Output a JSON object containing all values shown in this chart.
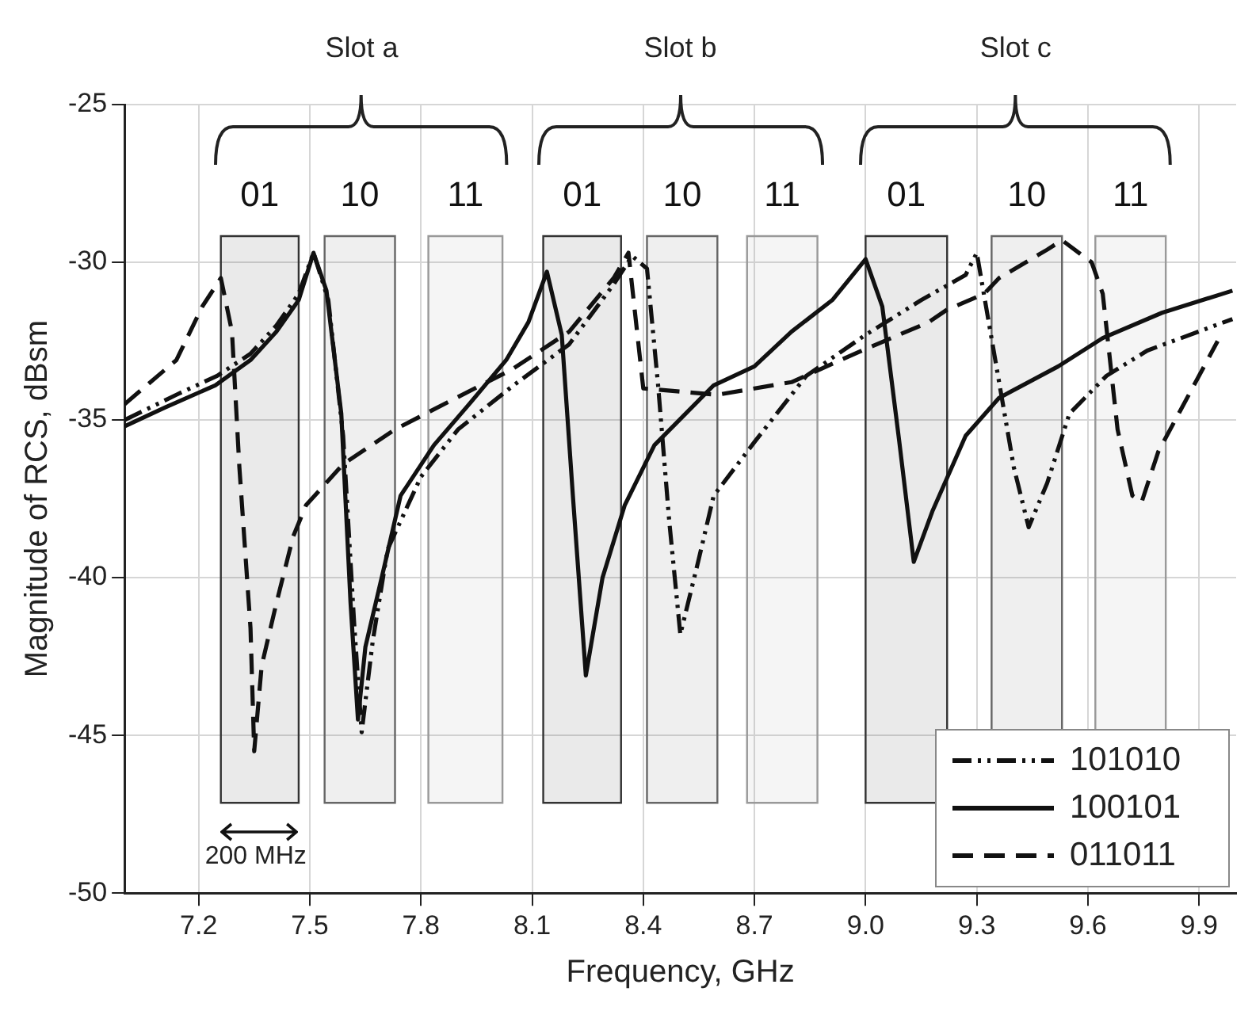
{
  "chart_data": {
    "type": "line",
    "xlabel": "Frequency, GHz",
    "ylabel": "Magnitude of RCS, dBsm",
    "xlim": [
      7.0,
      10.0
    ],
    "ylim": [
      -50,
      -25
    ],
    "xticks": [
      7.2,
      7.5,
      7.8,
      8.1,
      8.4,
      8.7,
      {
        "value": 9.0,
        "label": "9.0"
      },
      9.3,
      9.6,
      9.9
    ],
    "yticks": [
      -50,
      -45,
      -40,
      -35,
      -30,
      -25
    ],
    "grid": true,
    "legend": "bottom right",
    "annotations": [
      "Slot a",
      "Slot b",
      "Slot c",
      "200 MHz"
    ],
    "bands": [
      {
        "axis": "x",
        "from": 7.26,
        "to": 7.47,
        "label": "01",
        "color": "#333333"
      },
      {
        "axis": "x",
        "from": 7.54,
        "to": 7.73,
        "label": "10",
        "color": "#666666"
      },
      {
        "axis": "x",
        "from": 7.82,
        "to": 8.02,
        "label": "11",
        "color": "#999999"
      },
      {
        "axis": "x",
        "from": 8.13,
        "to": 8.34,
        "label": "01",
        "color": "#333333"
      },
      {
        "axis": "x",
        "from": 8.41,
        "to": 8.6,
        "label": "10",
        "color": "#666666"
      },
      {
        "axis": "x",
        "from": 8.68,
        "to": 8.87,
        "label": "11",
        "color": "#999999"
      },
      {
        "axis": "x",
        "from": 9.0,
        "to": 9.22,
        "label": "01",
        "color": "#333333"
      },
      {
        "axis": "x",
        "from": 9.34,
        "to": 9.53,
        "label": "10",
        "color": "#666666"
      },
      {
        "axis": "x",
        "from": 9.62,
        "to": 9.81,
        "label": "11",
        "color": "#999999"
      }
    ],
    "series": [
      {
        "name": "101010",
        "color": "#111111",
        "line_style": "dotted",
        "x": [
          7.0,
          7.14,
          7.25,
          7.34,
          7.41,
          7.47,
          7.51,
          7.55,
          7.59,
          7.62,
          7.64,
          7.67,
          7.71,
          7.8,
          7.9,
          8.05,
          8.2,
          8.32,
          8.37,
          8.41,
          8.44,
          8.47,
          8.5,
          8.55,
          8.59,
          8.7,
          8.84,
          9.0,
          9.15,
          9.27,
          9.3,
          9.35,
          9.4,
          9.44,
          9.49,
          9.55,
          9.65,
          9.76,
          9.99
        ],
        "values": [
          -35.0,
          -34.2,
          -33.6,
          -32.9,
          -32.0,
          -31.0,
          -29.7,
          -31.2,
          -35.5,
          -41.5,
          -44.9,
          -42.0,
          -39.1,
          -36.8,
          -35.3,
          -33.9,
          -32.6,
          -30.7,
          -29.8,
          -30.2,
          -33.9,
          -38.2,
          -41.8,
          -39.4,
          -37.4,
          -35.7,
          -33.6,
          -32.3,
          -31.2,
          -30.4,
          -29.7,
          -33.1,
          -36.5,
          -38.4,
          -37.0,
          -34.8,
          -33.6,
          -32.8,
          -31.8
        ]
      },
      {
        "name": "100101",
        "color": "#111111",
        "line_style": "solid",
        "x": [
          7.0,
          7.11,
          7.245,
          7.34,
          7.41,
          7.47,
          7.51,
          7.545,
          7.585,
          7.61,
          7.63,
          7.65,
          7.7,
          7.745,
          7.835,
          7.93,
          8.03,
          8.09,
          8.14,
          8.18,
          8.21,
          8.245,
          8.29,
          8.35,
          8.43,
          8.59,
          8.7,
          8.8,
          8.91,
          9.0,
          9.045,
          9.09,
          9.13,
          9.18,
          9.27,
          9.36,
          9.52,
          9.64,
          9.8,
          9.99
        ],
        "values": [
          -35.2,
          -34.6,
          -33.9,
          -33.1,
          -32.2,
          -31.2,
          -29.7,
          -30.9,
          -34.8,
          -40.8,
          -44.5,
          -42.2,
          -39.7,
          -37.4,
          -35.8,
          -34.5,
          -33.1,
          -31.9,
          -30.3,
          -32.3,
          -37.4,
          -43.1,
          -40.0,
          -37.7,
          -35.8,
          -33.9,
          -33.3,
          -32.2,
          -31.2,
          -29.9,
          -31.4,
          -35.6,
          -39.5,
          -37.9,
          -35.5,
          -34.3,
          -33.3,
          -32.4,
          -31.6,
          -30.9
        ]
      },
      {
        "name": "011011",
        "color": "#111111",
        "line_style": "dashed",
        "x": [
          7.0,
          7.14,
          7.21,
          7.26,
          7.29,
          7.31,
          7.34,
          7.35,
          7.37,
          7.41,
          7.455,
          7.49,
          7.59,
          7.73,
          7.895,
          8.045,
          8.2,
          8.32,
          8.36,
          8.4,
          8.6,
          8.8,
          8.99,
          9.05,
          9.17,
          9.22,
          9.32,
          9.36,
          9.49,
          9.53,
          9.61,
          9.64,
          9.68,
          9.72,
          9.745,
          9.79,
          9.95
        ],
        "values": [
          -34.5,
          -33.1,
          -31.4,
          -30.5,
          -32.2,
          -36.5,
          -41.6,
          -45.5,
          -42.8,
          -40.8,
          -38.7,
          -37.7,
          -36.4,
          -35.3,
          -34.3,
          -33.4,
          -32.2,
          -30.5,
          -29.7,
          -34.0,
          -34.2,
          -33.8,
          -32.8,
          -32.5,
          -31.9,
          -31.5,
          -31.0,
          -30.5,
          -29.6,
          -29.3,
          -30.0,
          -31.0,
          -35.3,
          -37.4,
          -37.6,
          -36.0,
          -32.5
        ]
      }
    ]
  }
}
